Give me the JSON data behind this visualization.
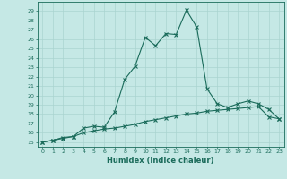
{
  "title": "",
  "xlabel": "Humidex (Indice chaleur)",
  "background_color": "#c5e8e5",
  "line_color": "#1a6b5a",
  "grid_color": "#aad4d0",
  "xlim": [
    -0.5,
    23.5
  ],
  "ylim": [
    14.5,
    30.0
  ],
  "xticks": [
    0,
    1,
    2,
    3,
    4,
    5,
    6,
    7,
    8,
    9,
    10,
    11,
    12,
    13,
    14,
    15,
    16,
    17,
    18,
    19,
    20,
    21,
    22,
    23
  ],
  "yticks": [
    15,
    16,
    17,
    18,
    19,
    20,
    21,
    22,
    23,
    24,
    25,
    26,
    27,
    28,
    29
  ],
  "series1_x": [
    0,
    1,
    2,
    3,
    4,
    5,
    6,
    7,
    8,
    9,
    10,
    11,
    12,
    13,
    14,
    15,
    16,
    17,
    18,
    19,
    20,
    21,
    22,
    23
  ],
  "series1_y": [
    15.0,
    15.2,
    15.5,
    15.6,
    16.5,
    16.7,
    16.6,
    18.2,
    21.7,
    23.1,
    26.2,
    25.3,
    26.6,
    26.5,
    29.1,
    27.3,
    20.7,
    19.1,
    18.7,
    19.1,
    19.4,
    19.1,
    18.5,
    17.5
  ],
  "series2_x": [
    0,
    1,
    2,
    3,
    4,
    5,
    6,
    7,
    8,
    9,
    10,
    11,
    12,
    13,
    14,
    15,
    16,
    17,
    18,
    19,
    20,
    21,
    22,
    23
  ],
  "series2_y": [
    15.0,
    15.2,
    15.4,
    15.6,
    16.0,
    16.2,
    16.4,
    16.5,
    16.7,
    16.9,
    17.2,
    17.4,
    17.6,
    17.8,
    18.0,
    18.1,
    18.3,
    18.4,
    18.5,
    18.6,
    18.7,
    18.8,
    17.7,
    17.5
  ]
}
